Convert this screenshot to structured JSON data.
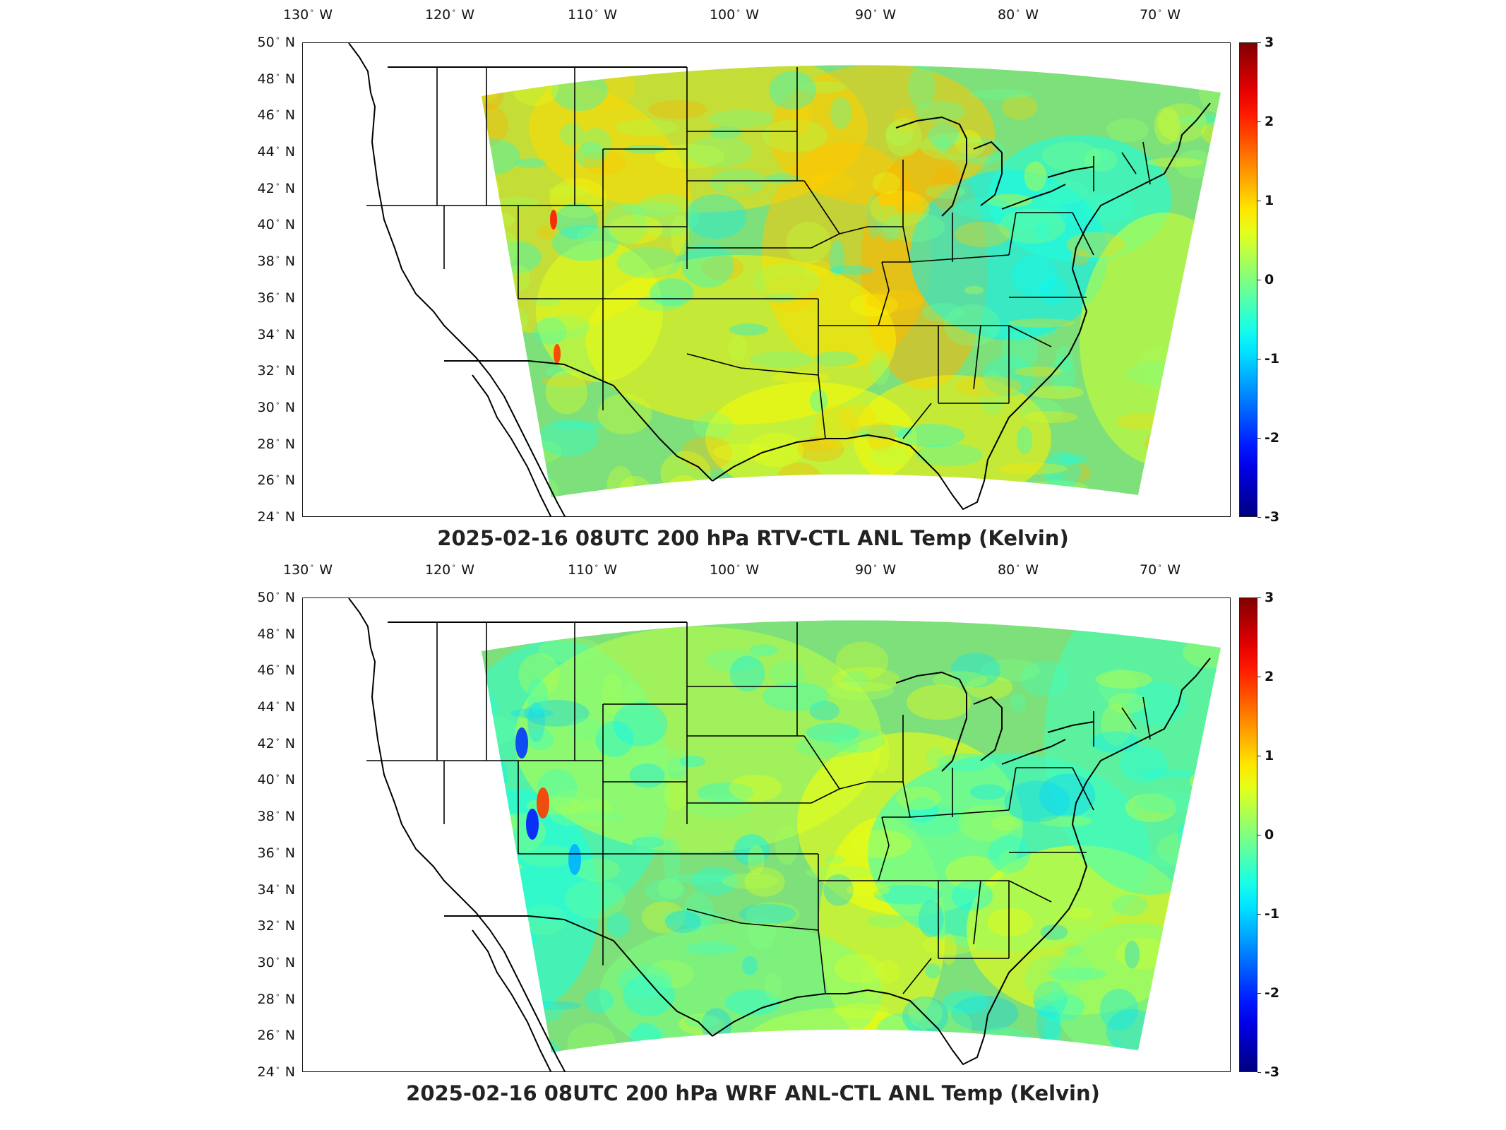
{
  "panels": [
    {
      "title": "2025-02-16 08UTC 200 hPa RTV-CTL ANL Temp (Kelvin)",
      "variant": "rtv"
    },
    {
      "title": "2025-02-16 08UTC 200 hPa WRF ANL-CTL ANL Temp (Kelvin)",
      "variant": "wrf"
    }
  ],
  "lon_ticks": [
    {
      "deg": "130",
      "hem": "W"
    },
    {
      "deg": "120",
      "hem": "W"
    },
    {
      "deg": "110",
      "hem": "W"
    },
    {
      "deg": "100",
      "hem": "W"
    },
    {
      "deg": "90",
      "hem": "W"
    },
    {
      "deg": "80",
      "hem": "W"
    },
    {
      "deg": "70",
      "hem": "W"
    }
  ],
  "lat_ticks": [
    {
      "deg": "50",
      "hem": "N"
    },
    {
      "deg": "48",
      "hem": "N"
    },
    {
      "deg": "46",
      "hem": "N"
    },
    {
      "deg": "44",
      "hem": "N"
    },
    {
      "deg": "42",
      "hem": "N"
    },
    {
      "deg": "40",
      "hem": "N"
    },
    {
      "deg": "38",
      "hem": "N"
    },
    {
      "deg": "36",
      "hem": "N"
    },
    {
      "deg": "34",
      "hem": "N"
    },
    {
      "deg": "32",
      "hem": "N"
    },
    {
      "deg": "30",
      "hem": "N"
    },
    {
      "deg": "28",
      "hem": "N"
    },
    {
      "deg": "26",
      "hem": "N"
    },
    {
      "deg": "24",
      "hem": "N"
    }
  ],
  "colorbar": {
    "ticks": [
      "3",
      "2",
      "1",
      "0",
      "-1",
      "-2",
      "-3"
    ],
    "range": [
      -3,
      3
    ],
    "colormap": "jet"
  },
  "colors": {
    "field_neutral": "#7de07a",
    "field_warm": "#e6f03a",
    "field_cool": "#3ee6c8",
    "outline": "#000000"
  }
}
